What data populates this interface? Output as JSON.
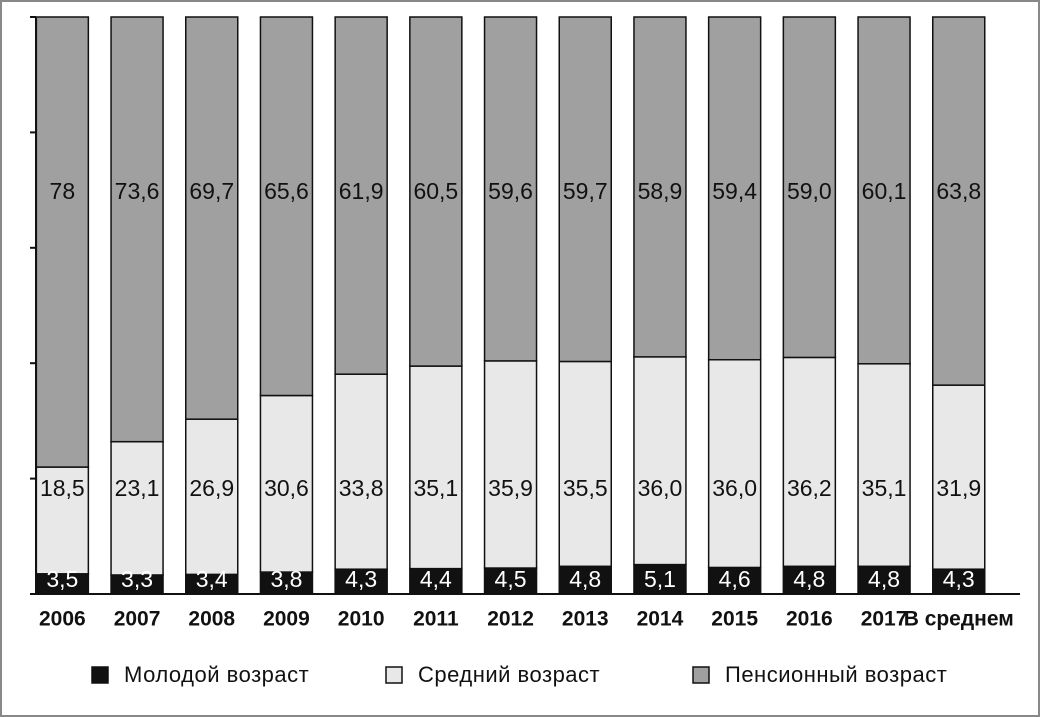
{
  "chart_data": {
    "type": "stacked-bar",
    "categories": [
      "2006",
      "2007",
      "2008",
      "2009",
      "2010",
      "2011",
      "2012",
      "2013",
      "2014",
      "2015",
      "2016",
      "2017",
      "В среднем"
    ],
    "series": [
      {
        "name": "Молодой возраст",
        "color": "#111111",
        "values": [
          3.5,
          3.3,
          3.4,
          3.8,
          4.3,
          4.4,
          4.5,
          4.8,
          5.1,
          4.6,
          4.8,
          4.8,
          4.3
        ],
        "value_labels": [
          "3,5",
          "3,3",
          "3,4",
          "3,8",
          "4,3",
          "4,4",
          "4,5",
          "4,8",
          "5,1",
          "4,6",
          "4,8",
          "4,8",
          "4,3"
        ]
      },
      {
        "name": "Средний возраст",
        "color": "#e8e8e8",
        "values": [
          18.5,
          23.1,
          26.9,
          30.6,
          33.8,
          35.1,
          35.9,
          35.5,
          36.0,
          36.0,
          36.2,
          35.1,
          31.9
        ],
        "value_labels": [
          "18,5",
          "23,1",
          "26,9",
          "30,6",
          "33,8",
          "35,1",
          "35,9",
          "35,5",
          "36,0",
          "36,0",
          "36,2",
          "35,1",
          "31,9"
        ]
      },
      {
        "name": "Пенсионный возраст",
        "color": "#a0a0a0",
        "values": [
          78,
          73.6,
          69.7,
          65.6,
          61.9,
          60.5,
          59.6,
          59.7,
          58.9,
          59.4,
          59.0,
          60.1,
          63.8
        ],
        "value_labels": [
          "78",
          "73,6",
          "69,7",
          "65,6",
          "61,9",
          "60,5",
          "59,6",
          "59,7",
          "58,9",
          "59,4",
          "59,0",
          "60,1",
          "63,8"
        ]
      }
    ],
    "ylim": [
      0,
      100
    ],
    "yticks": [
      0,
      20,
      40,
      60,
      80,
      100
    ]
  }
}
